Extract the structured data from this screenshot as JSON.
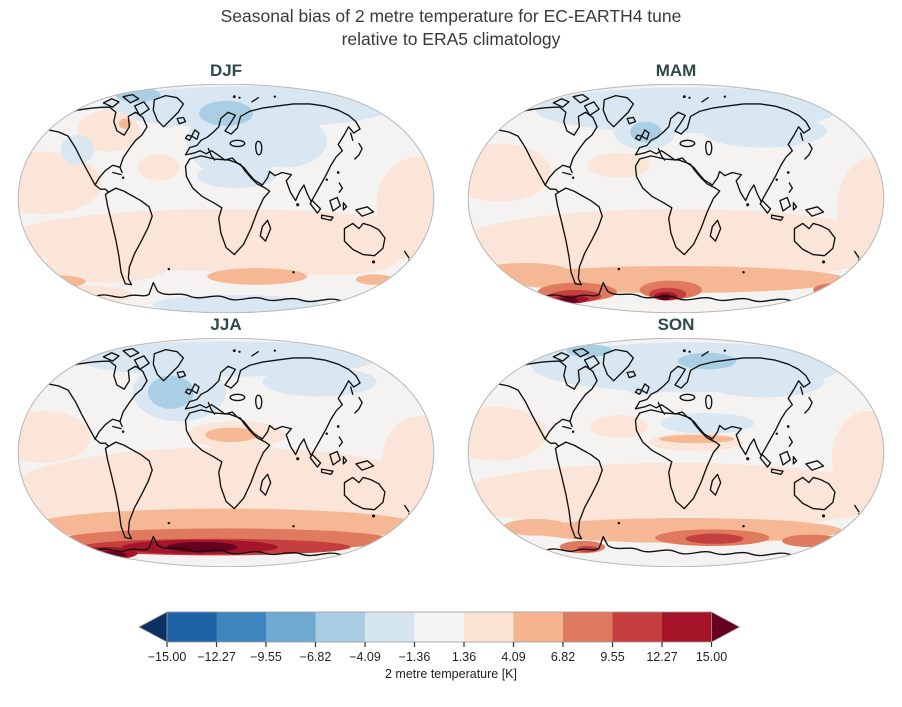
{
  "figure": {
    "title_line1": "Seasonal bias of 2 metre temperature for EC-EARTH4 tune",
    "title_line2": "relative to ERA5 climatology",
    "title_color": "#3a3a3a",
    "panel_title_color": "#2e4a48"
  },
  "panels": [
    {
      "id": "djf",
      "label": "DJF"
    },
    {
      "id": "mam",
      "label": "MAM"
    },
    {
      "id": "jja",
      "label": "JJA"
    },
    {
      "id": "son",
      "label": "SON"
    }
  ],
  "colorbar": {
    "label": "2 metre temperature [K]",
    "ticks": [
      "−15.00",
      "−12.27",
      "−9.55",
      "−6.82",
      "−4.09",
      "−1.36",
      "1.36",
      "4.09",
      "6.82",
      "9.55",
      "12.27",
      "15.00"
    ],
    "segment_colors": [
      "#1e61a5",
      "#3e86bd",
      "#6fa9d0",
      "#a8cde2",
      "#d6e6f0",
      "#f6f5f3",
      "#fbe3d4",
      "#f5b48e",
      "#e07a5e",
      "#c53f3e",
      "#a51429"
    ],
    "extend_low_color": "#0b3162",
    "extend_high_color": "#67001f",
    "outline_color": "#9a9a9a",
    "tick_color": "#333333",
    "tick_label_color": "#222222"
  },
  "map_colors": {
    "base": "#f4f3f1",
    "pale_blue": "#d8e7f1",
    "light_blue": "#aacfe4",
    "pale_pink": "#fbe5d8",
    "peach": "#f6b894",
    "salmon": "#e07a5e",
    "red": "#c53f3e",
    "dark_red": "#a51429",
    "maroon": "#67001f",
    "coastline": "#111111",
    "outline": "#b9b9b9"
  },
  "chart_data": {
    "type": "heatmap",
    "title": "Seasonal bias of 2 metre temperature for EC-EARTH4 tune relative to ERA5 climatology",
    "variable": "2 metre temperature bias [K]",
    "projection": "Robinson",
    "panels": [
      "DJF",
      "MAM",
      "JJA",
      "SON"
    ],
    "colorbar_ticks": [
      -15.0,
      -12.27,
      -9.55,
      -6.82,
      -4.09,
      -1.36,
      1.36,
      4.09,
      6.82,
      9.55,
      12.27,
      15.0
    ],
    "colorbar_range": [
      -15,
      15
    ],
    "colorbar_bins": 11,
    "colormap": "RdBu_r discrete with triangular out-of-range extensions",
    "patterns": {
      "DJF": "Weak warm bias (1-4 K) over subtropical oceans and Canada with a stronger spot near Hudson Bay; cool bias (-1 to -4 K) over the Arctic, Norwegian Sea, Europe, Sahara, Middle East and central Asia; slight cool bias over interior Antarctica; warm patches just north of the Antarctic coast.",
      "MAM": "Cool bias over the Arctic, North Atlantic and Siberia; widespread weak warm bias over tropical and southern oceans; strong warm maxima (>12 K) near the Antarctic coast in the Weddell and Ross Sea sectors.",
      "JJA": "Cool bias over the North Atlantic, Arctic and Siberia; warm bias over the Sahara; strong circum-Antarctic warm bias reaching 15 K along the coast, strongest in the Atlantic sector.",
      "SON": "Cool bias over the Arctic and northern continents; moderate warm bias over subtropical and Southern Ocean with 4-10 K maxima near the Antarctic coast; warm Sahel stripe."
    }
  }
}
